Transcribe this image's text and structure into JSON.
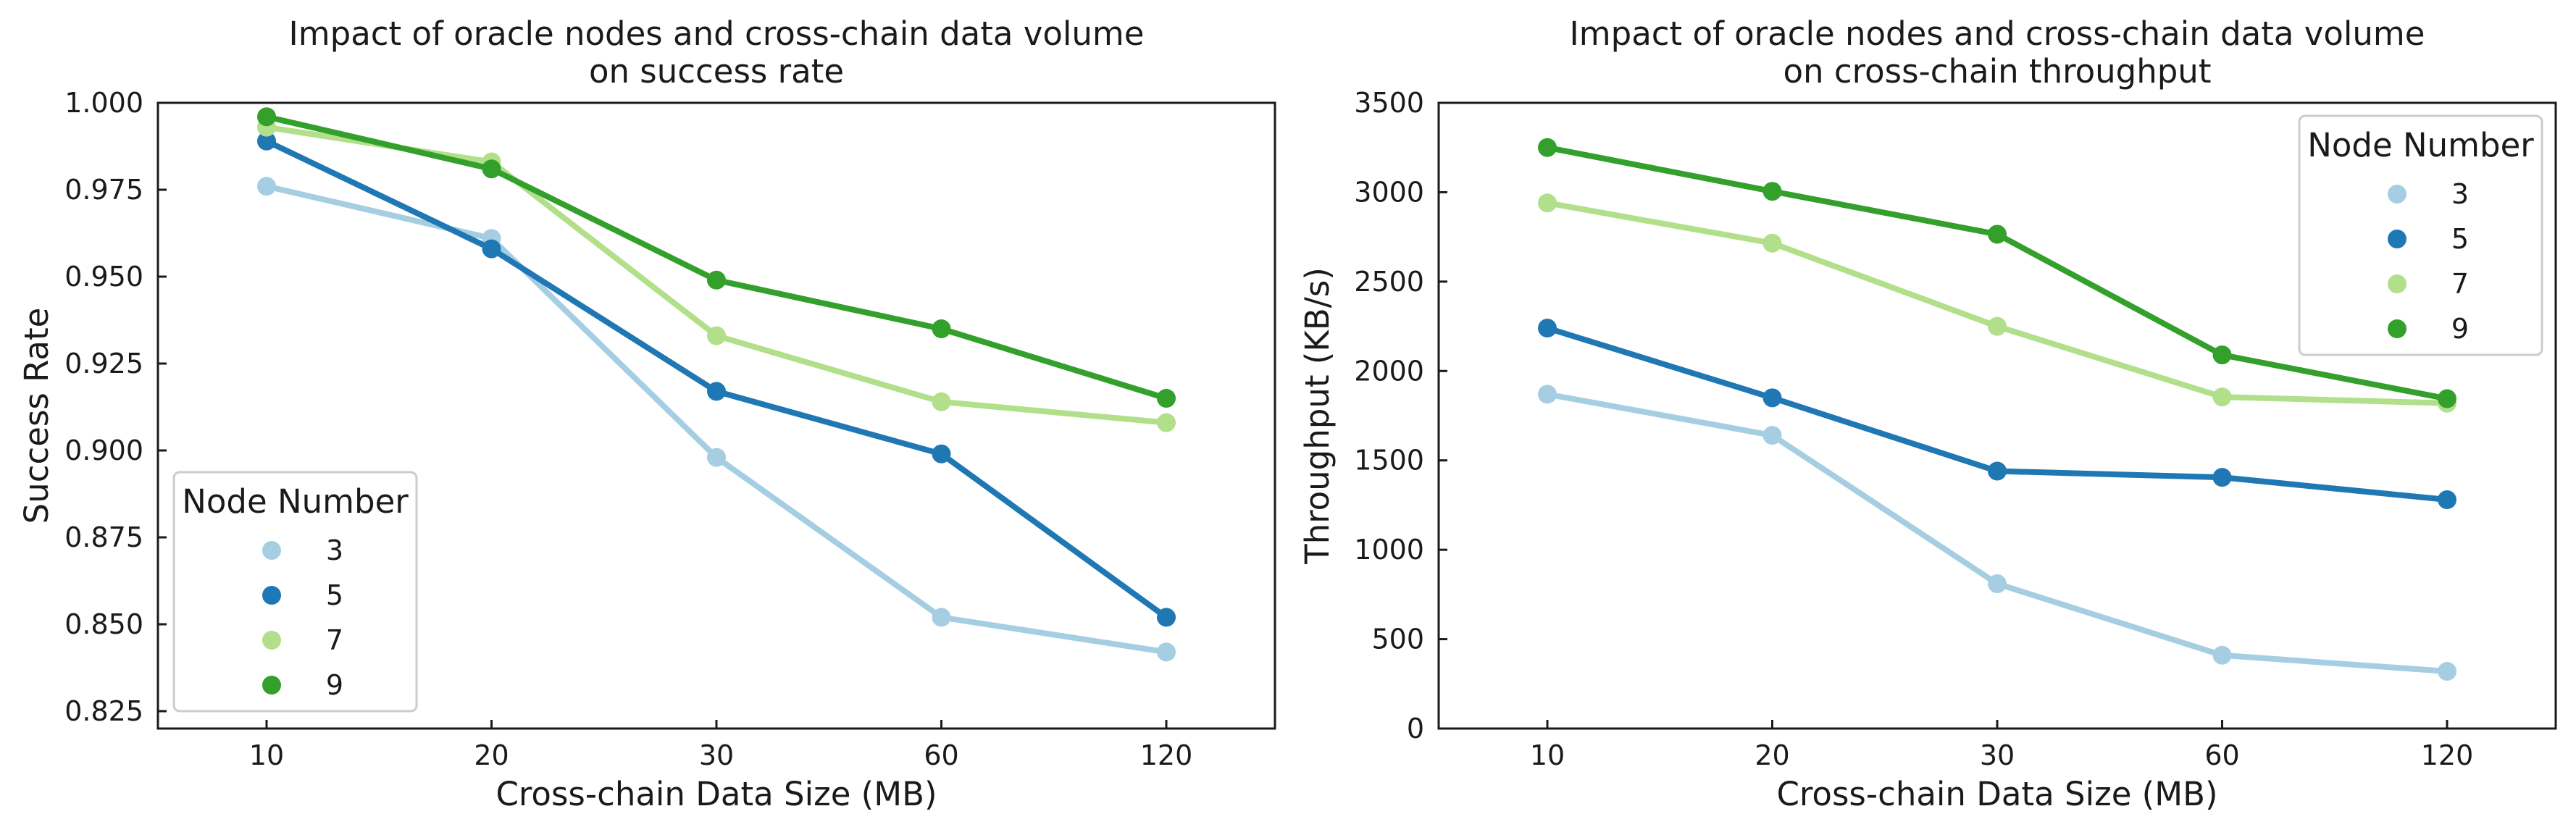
{
  "chart_data": [
    {
      "type": "line",
      "title": "Impact of oracle nodes and cross-chain data volume\non success rate",
      "xlabel": "Cross-chain Data Size (MB)",
      "ylabel": "Success Rate",
      "categories": [
        "10",
        "20",
        "30",
        "60",
        "120"
      ],
      "ylim": [
        0.82,
        1.0
      ],
      "yticks": [
        "0.825",
        "0.850",
        "0.875",
        "0.900",
        "0.925",
        "0.950",
        "0.975",
        "1.000"
      ],
      "legend_title": "Node Number",
      "legend_position": "lower-left",
      "grid": false,
      "series": [
        {
          "name": "3",
          "color": "#a6cee3",
          "values": [
            0.976,
            0.961,
            0.898,
            0.852,
            0.842
          ]
        },
        {
          "name": "5",
          "color": "#1f78b4",
          "values": [
            0.989,
            0.958,
            0.917,
            0.899,
            0.852
          ]
        },
        {
          "name": "7",
          "color": "#b2df8a",
          "values": [
            0.993,
            0.983,
            0.933,
            0.914,
            0.908
          ]
        },
        {
          "name": "9",
          "color": "#33a02c",
          "values": [
            0.996,
            0.981,
            0.949,
            0.935,
            0.915
          ]
        }
      ]
    },
    {
      "type": "line",
      "title": "Impact of oracle nodes and cross-chain data volume\non cross-chain throughput",
      "xlabel": "Cross-chain Data Size (MB)",
      "ylabel": "Throughput (KB/s)",
      "categories": [
        "10",
        "20",
        "30",
        "60",
        "120"
      ],
      "ylim": [
        0,
        3500
      ],
      "yticks": [
        "0",
        "500",
        "1000",
        "1500",
        "2000",
        "2500",
        "3000",
        "3500"
      ],
      "legend_title": "Node Number",
      "legend_position": "upper-right",
      "grid": false,
      "series": [
        {
          "name": "3",
          "color": "#a6cee3",
          "values": [
            1870,
            1640,
            810,
            410,
            320
          ]
        },
        {
          "name": "5",
          "color": "#1f78b4",
          "values": [
            2240,
            1850,
            1440,
            1405,
            1280
          ]
        },
        {
          "name": "7",
          "color": "#b2df8a",
          "values": [
            2940,
            2715,
            2250,
            1855,
            1820
          ]
        },
        {
          "name": "9",
          "color": "#33a02c",
          "values": [
            3250,
            3005,
            2765,
            2090,
            1845
          ]
        }
      ]
    }
  ]
}
